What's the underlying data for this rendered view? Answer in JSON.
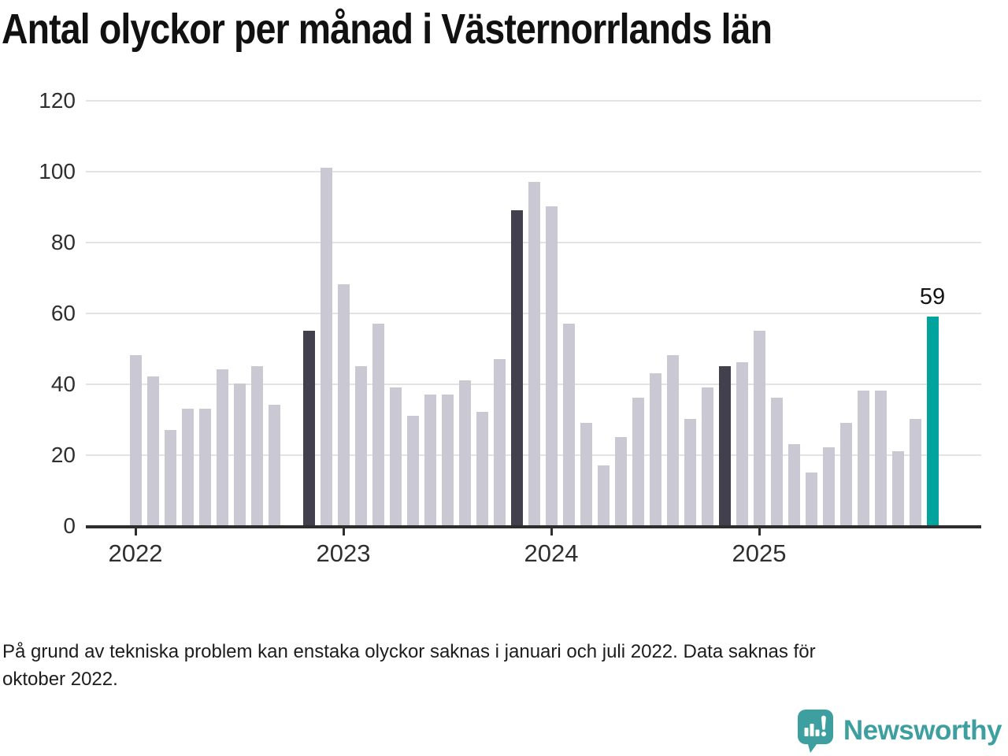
{
  "title": "Antal olyckor per månad i Västernorrlands län",
  "footnote": {
    "line1": "På grund av tekniska problem kan enstaka olyckor saknas i januari och juli 2022. Data saknas för",
    "line2": "oktober 2022."
  },
  "branding": {
    "name": "Newsworthy",
    "logo_icon": "newsworthy-speech-bubble-bar-chart-icon",
    "color": "#3e9fa0"
  },
  "chart_data": {
    "type": "bar",
    "title": "Antal olyckor per månad i Västernorrlands län",
    "xlabel": "",
    "ylabel": "",
    "ylim": [
      0,
      120
    ],
    "yticks": [
      0,
      20,
      40,
      60,
      80,
      100,
      120
    ],
    "grid": "horizontal",
    "months": [
      "2022-01",
      "2022-02",
      "2022-03",
      "2022-04",
      "2022-05",
      "2022-06",
      "2022-07",
      "2022-08",
      "2022-09",
      "2022-10",
      "2022-11",
      "2022-12",
      "2023-01",
      "2023-02",
      "2023-03",
      "2023-04",
      "2023-05",
      "2023-06",
      "2023-07",
      "2023-08",
      "2023-09",
      "2023-10",
      "2023-11",
      "2023-12",
      "2024-01",
      "2024-02",
      "2024-03",
      "2024-04",
      "2024-05",
      "2024-06",
      "2024-07",
      "2024-08",
      "2024-09",
      "2024-10",
      "2024-11",
      "2024-12",
      "2025-01",
      "2025-02",
      "2025-03",
      "2025-04",
      "2025-05",
      "2025-06",
      "2025-07",
      "2025-08",
      "2025-09",
      "2025-10",
      "2025-11"
    ],
    "values": [
      48,
      42,
      27,
      33,
      33,
      44,
      40,
      45,
      34,
      null,
      55,
      101,
      68,
      45,
      57,
      39,
      31,
      37,
      37,
      41,
      32,
      47,
      89,
      97,
      90,
      57,
      29,
      17,
      25,
      36,
      43,
      48,
      30,
      39,
      45,
      46,
      55,
      36,
      23,
      15,
      22,
      29,
      38,
      38,
      21,
      30,
      59
    ],
    "missing_months": [
      "2022-10"
    ],
    "year_ticks": [
      {
        "label": "2022",
        "month_index": 0
      },
      {
        "label": "2023",
        "month_index": 12
      },
      {
        "label": "2024",
        "month_index": 24
      },
      {
        "label": "2025",
        "month_index": 36
      }
    ],
    "bar_styles": {
      "2022-11": "dark",
      "2023-11": "dark",
      "2024-11": "dark",
      "2025-11": "highlight"
    },
    "annotation": {
      "month": "2025-11",
      "text": "59"
    },
    "colors": {
      "bar_default": "#c9c8d3",
      "bar_dark": "#42404d",
      "bar_highlight": "#00a49c",
      "gridline": "#e3e3e3",
      "axis": "#2e2e2e",
      "tick_text": "#2f2f2f"
    }
  }
}
